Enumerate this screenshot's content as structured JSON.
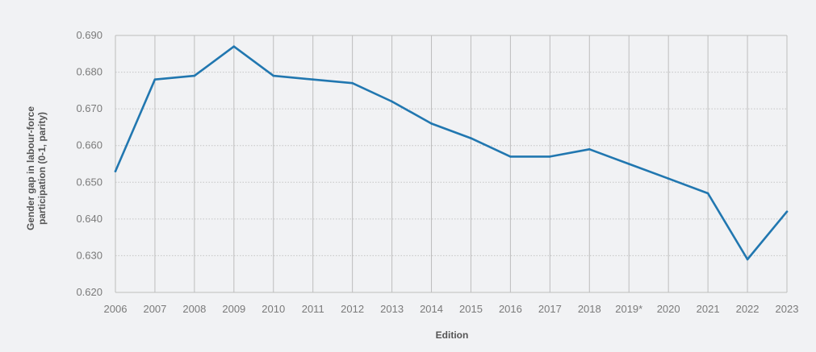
{
  "chart_data": {
    "type": "line",
    "title": "",
    "xlabel": "Edition",
    "ylabel_lines": [
      "Gender gap in labour-force",
      "participation (0-1, parity)"
    ],
    "categories": [
      "2006",
      "2007",
      "2008",
      "2009",
      "2010",
      "2011",
      "2012",
      "2013",
      "2014",
      "2015",
      "2016",
      "2017",
      "2018",
      "2019*",
      "2020",
      "2021",
      "2022",
      "2023"
    ],
    "series": [
      {
        "values": [
          0.653,
          0.678,
          0.679,
          0.687,
          0.679,
          0.678,
          0.677,
          0.672,
          0.666,
          0.662,
          0.657,
          0.657,
          0.659,
          0.655,
          0.651,
          0.647,
          0.629,
          0.642
        ],
        "color": "#2177b0"
      }
    ],
    "ylim": [
      0.62,
      0.69
    ],
    "yticks": [
      "0.620",
      "0.630",
      "0.640",
      "0.650",
      "0.660",
      "0.670",
      "0.680",
      "0.690"
    ],
    "grid": "dotted horizontal, solid vertical",
    "legend": "none",
    "colors": {
      "background": "#f1f2f4",
      "grid": "#c4c4c4",
      "text": "#7a7a7a",
      "title": "#555555"
    }
  }
}
